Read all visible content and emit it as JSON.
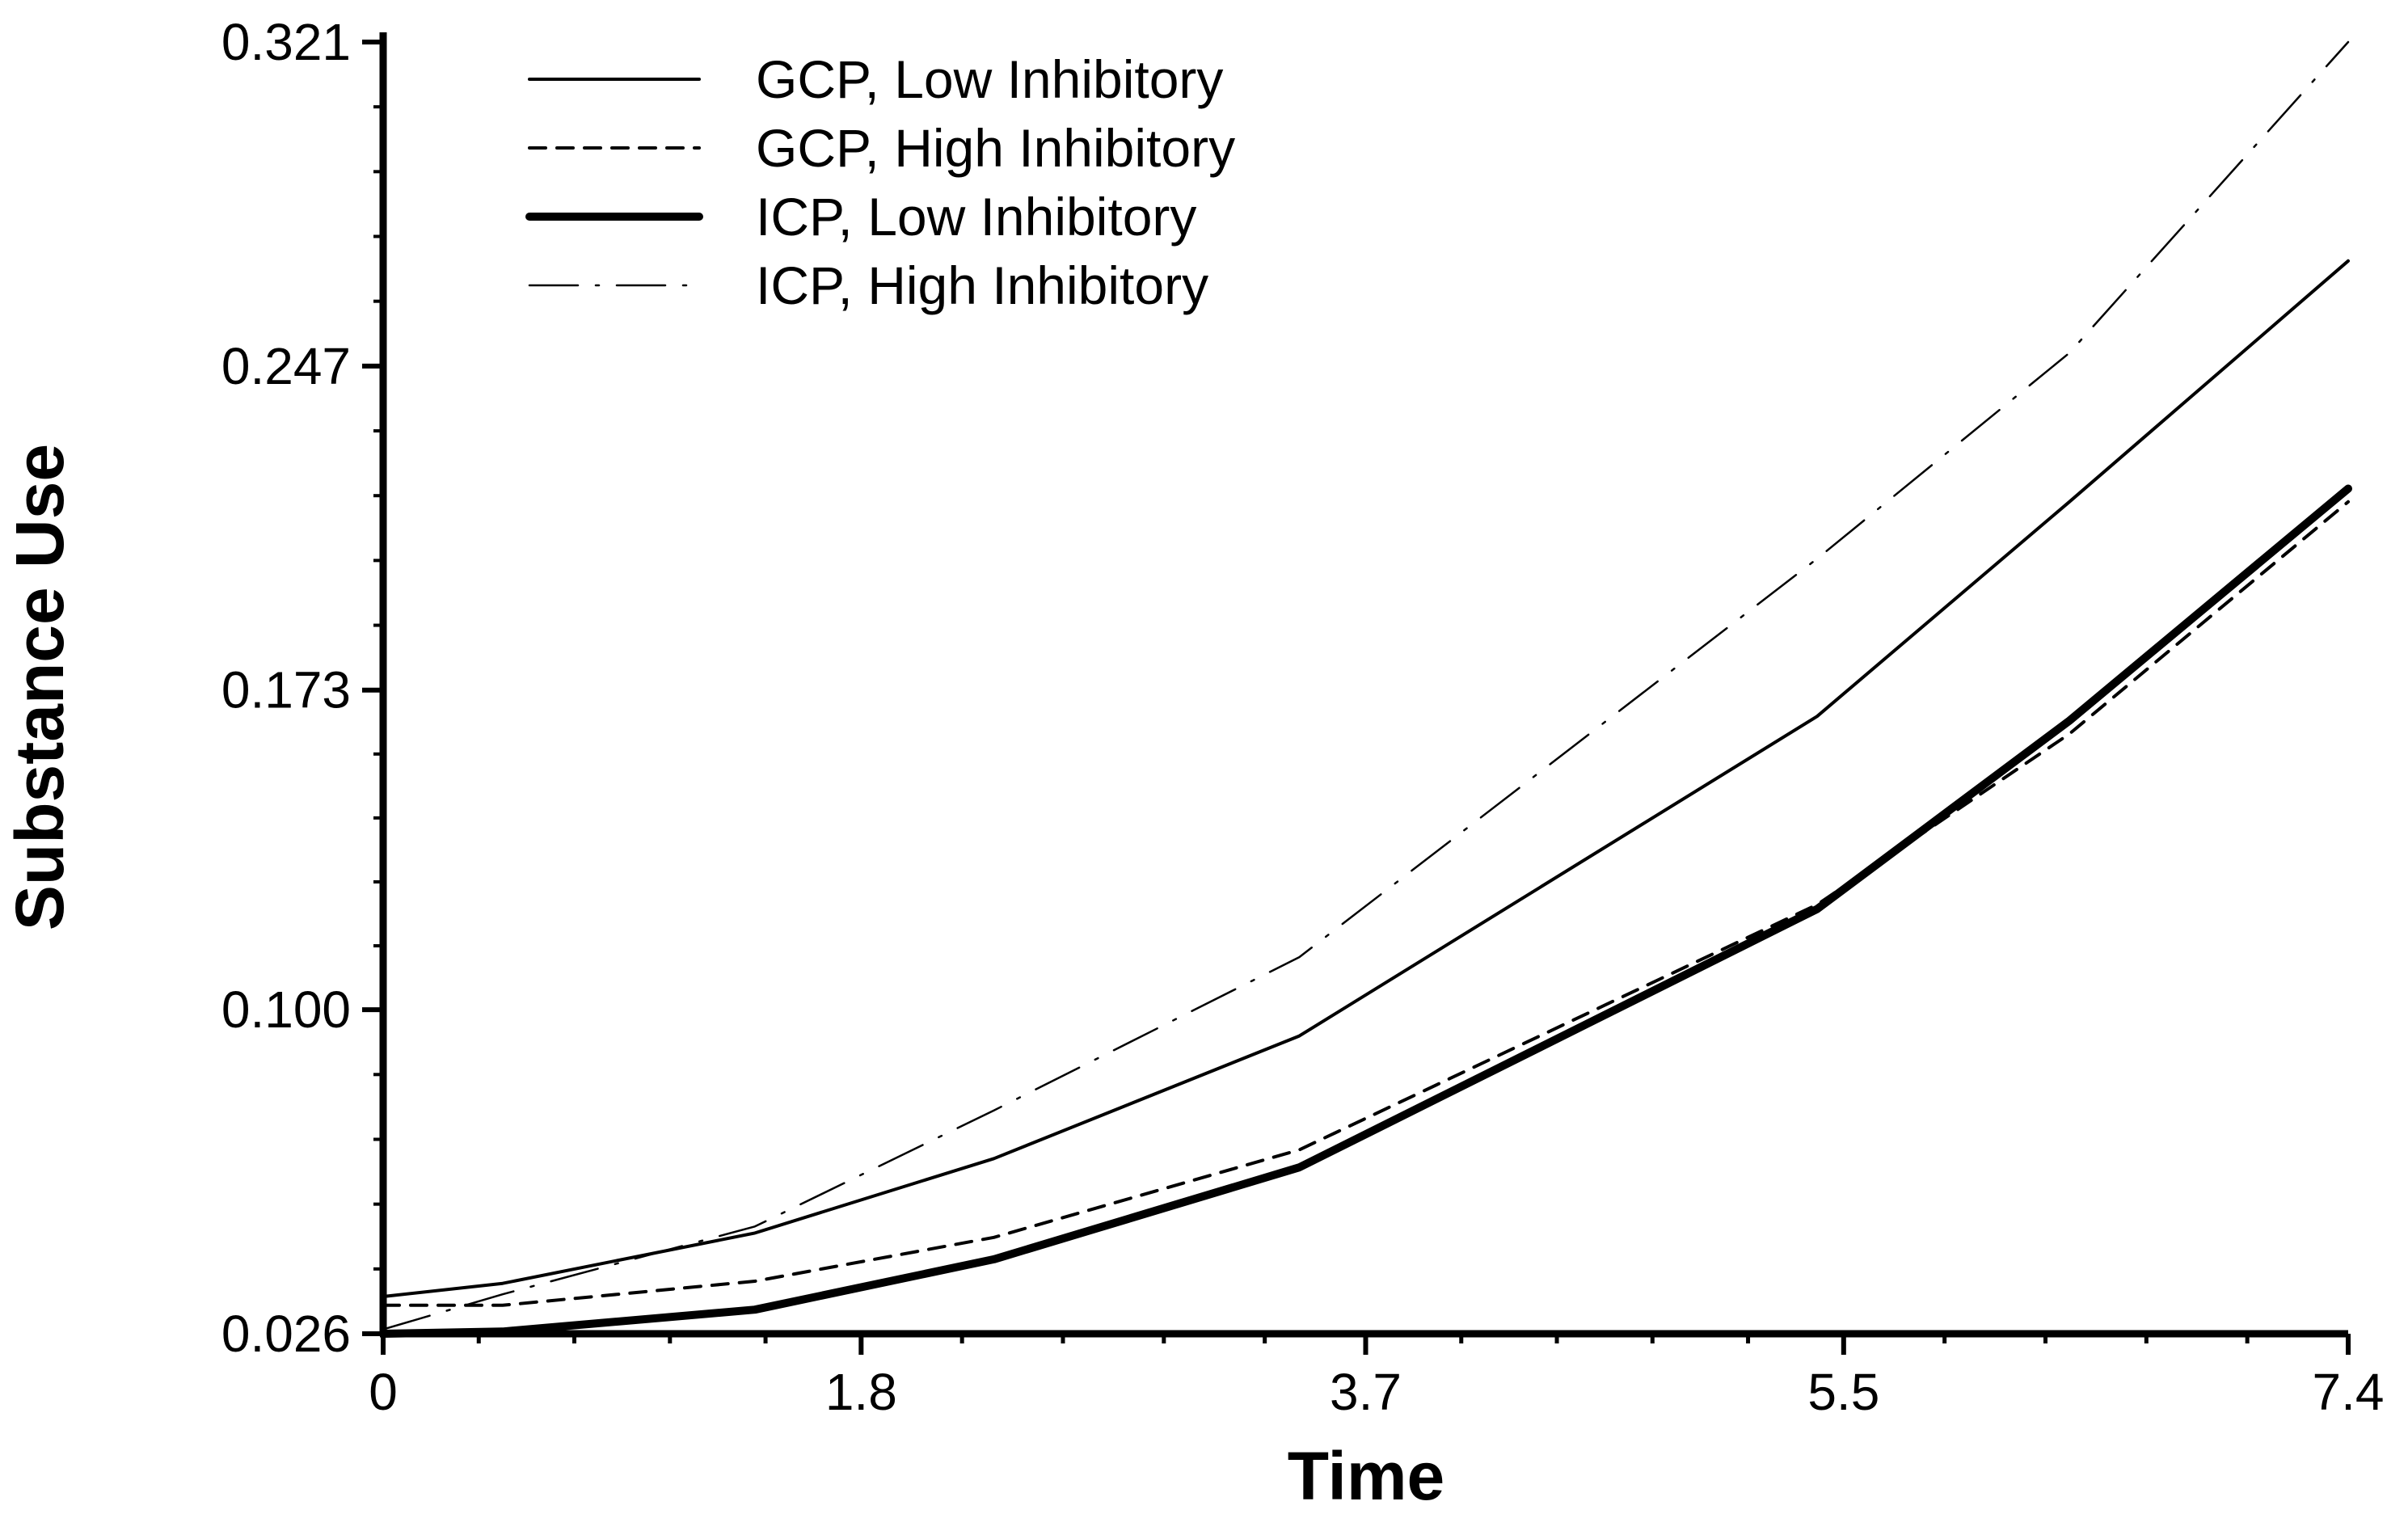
{
  "chart_data": {
    "type": "line",
    "title": "",
    "xlabel": "Time",
    "ylabel": "Substance Use",
    "xlim": [
      0,
      7.4
    ],
    "ylim": [
      0.026,
      0.321
    ],
    "xticks": [
      0,
      1.8,
      3.7,
      5.5,
      7.4
    ],
    "xtick_labels": [
      "0",
      "1.8",
      "3.7",
      "5.5",
      "7.4"
    ],
    "yticks": [
      0.026,
      0.1,
      0.173,
      0.247,
      0.321
    ],
    "ytick_labels": [
      "0.026",
      "0.100",
      "0.173",
      "0.247",
      "0.321"
    ],
    "grid": false,
    "legend_position": "top-left",
    "series": [
      {
        "name": "GCP, Low Inhibitory",
        "style": "solid",
        "weight": "thin",
        "x": [
          0,
          0.45,
          1.4,
          2.3,
          3.45,
          5.4,
          6.35,
          7.4
        ],
        "values": [
          0.0345,
          0.0375,
          0.049,
          0.066,
          0.094,
          0.167,
          0.216,
          0.271
        ]
      },
      {
        "name": "GCP, High Inhibitory",
        "style": "dashed",
        "weight": "thin",
        "x": [
          0,
          0.45,
          1.4,
          2.3,
          3.45,
          5.4,
          6.35,
          7.4
        ],
        "values": [
          0.0325,
          0.0325,
          0.038,
          0.048,
          0.068,
          0.124,
          0.163,
          0.216
        ]
      },
      {
        "name": "ICP, Low Inhibitory",
        "style": "solid",
        "weight": "thick",
        "x": [
          0,
          0.45,
          1.4,
          2.3,
          3.45,
          5.4,
          6.35,
          7.4
        ],
        "values": [
          0.026,
          0.0265,
          0.0315,
          0.043,
          0.064,
          0.123,
          0.166,
          0.219
        ]
      },
      {
        "name": "ICP, High Inhibitory",
        "style": "dashdot",
        "weight": "thin",
        "x": [
          0,
          0.45,
          1.4,
          2.3,
          3.45,
          5.4,
          6.35,
          7.4
        ],
        "values": [
          0.027,
          0.035,
          0.0505,
          0.077,
          0.112,
          0.203,
          0.25,
          0.321
        ]
      }
    ]
  }
}
